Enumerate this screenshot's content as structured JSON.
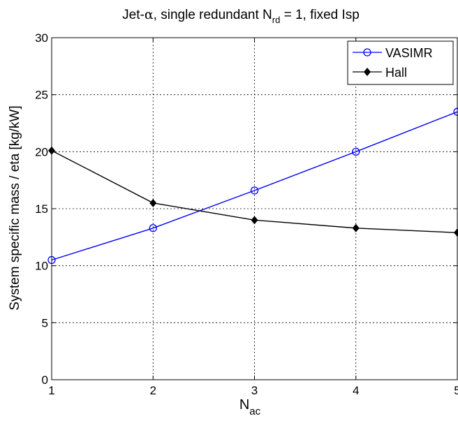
{
  "chart_data": {
    "type": "line",
    "title": {
      "prefix": "Jet-",
      "alpha": "α",
      "middle": ", single redundant N",
      "sub": "rd",
      "suffix": " = 1, fixed Isp"
    },
    "xlabel": {
      "main": "N",
      "sub": "ac"
    },
    "ylabel": "System specific mass / eta [kg/kW]",
    "xlim": [
      1,
      5
    ],
    "ylim": [
      0,
      30
    ],
    "x_ticks": [
      1,
      2,
      3,
      4,
      5
    ],
    "x_tick_labels": [
      "1",
      "2",
      "3",
      "4",
      "5"
    ],
    "y_ticks": [
      0,
      5,
      10,
      15,
      20,
      25,
      30
    ],
    "y_tick_labels": [
      "0",
      "5",
      "10",
      "15",
      "20",
      "25",
      "30"
    ],
    "grid": true,
    "legend_position": "top-right",
    "series": [
      {
        "name": "VASIMR",
        "color": "#0000ff",
        "marker": "circle-open",
        "x": [
          1,
          2,
          3,
          4,
          5
        ],
        "values": [
          10.5,
          13.3,
          16.6,
          20.0,
          23.5
        ]
      },
      {
        "name": "Hall",
        "color": "#000000",
        "marker": "diamond-filled",
        "x": [
          1,
          2,
          3,
          4,
          5
        ],
        "values": [
          20.1,
          15.5,
          14.0,
          13.3,
          12.9
        ]
      }
    ]
  }
}
